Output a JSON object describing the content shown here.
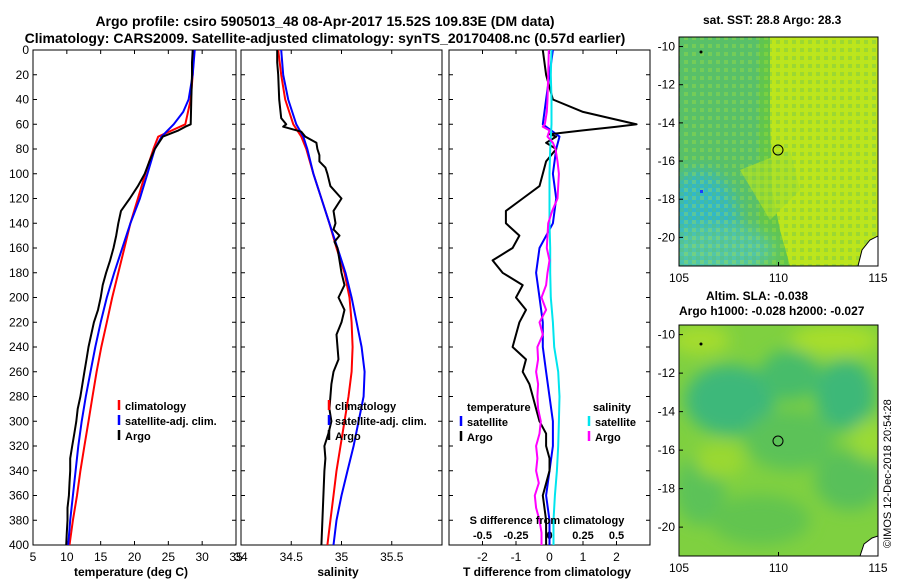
{
  "header": {
    "line1": "Argo profile: csiro 5905013_48 08-Apr-2017 15.52S 109.83E (DM data)",
    "line2": "Climatology: CARS2009. Satellite-adjusted climatology: synTS_20170408.nc (0.57d earlier)"
  },
  "colors": {
    "climatology": "#ff0000",
    "satellite": "#0000ff",
    "argo": "#000000",
    "salinity": "#00e5ee",
    "sal_argo": "#ff00ff"
  },
  "chart_data": [
    {
      "type": "line",
      "id": "temperature",
      "xlabel": "temperature (deg C)",
      "xlim": [
        5,
        35
      ],
      "ylim": [
        0,
        400
      ],
      "xticks": [
        5,
        10,
        15,
        20,
        25,
        30,
        35
      ],
      "yticks": [
        0,
        20,
        40,
        60,
        80,
        100,
        120,
        140,
        160,
        180,
        200,
        220,
        240,
        260,
        280,
        300,
        320,
        340,
        360,
        380,
        400
      ],
      "legend": [
        "climatology",
        "satellite-adj. clim.",
        "Argo"
      ],
      "series": [
        {
          "name": "climatology",
          "color": "#ff0000",
          "depth": [
            0,
            20,
            40,
            60,
            70,
            80,
            100,
            120,
            140,
            160,
            180,
            200,
            220,
            240,
            260,
            280,
            300,
            320,
            340,
            360,
            380,
            400
          ],
          "values": [
            28.8,
            28.6,
            28.3,
            27.5,
            23.5,
            22.8,
            21.6,
            20.5,
            19.4,
            18.5,
            17.6,
            16.7,
            15.9,
            15.1,
            14.4,
            13.8,
            13.2,
            12.6,
            12.0,
            11.5,
            10.9,
            10.4
          ]
        },
        {
          "name": "satellite-adj. clim.",
          "color": "#0000ff",
          "depth": [
            0,
            20,
            40,
            50,
            60,
            70,
            80,
            100,
            120,
            140,
            160,
            180,
            200,
            220,
            240,
            260,
            280,
            300,
            320,
            340,
            360,
            380,
            400
          ],
          "values": [
            28.9,
            28.6,
            28.0,
            27.2,
            25.8,
            24.0,
            23.0,
            21.9,
            20.8,
            19.4,
            18.2,
            17.0,
            15.9,
            15.0,
            14.2,
            13.5,
            12.8,
            12.2,
            11.7,
            11.3,
            10.9,
            10.5,
            10.2
          ]
        },
        {
          "name": "Argo",
          "color": "#000000",
          "depth": [
            0,
            10,
            20,
            40,
            60,
            62,
            65,
            70,
            80,
            90,
            100,
            110,
            120,
            130,
            140,
            150,
            160,
            170,
            180,
            190,
            200,
            210,
            220,
            230,
            240,
            250,
            260,
            270,
            280,
            290,
            300,
            310,
            320,
            330,
            340,
            350,
            360,
            370,
            380,
            390,
            400
          ],
          "values": [
            28.6,
            28.5,
            28.5,
            28.4,
            28.3,
            27.5,
            26.5,
            24.2,
            23.0,
            22.2,
            21.5,
            20.5,
            19.3,
            18.0,
            17.6,
            17.3,
            16.9,
            16.4,
            15.8,
            15.3,
            15.0,
            14.6,
            14.0,
            13.6,
            13.2,
            12.9,
            12.6,
            12.3,
            12.0,
            11.6,
            11.4,
            11.1,
            10.8,
            10.5,
            10.5,
            10.4,
            10.3,
            10.1,
            10.1,
            10.0,
            9.9
          ]
        }
      ]
    },
    {
      "type": "line",
      "id": "salinity",
      "xlabel": "salinity",
      "xlim": [
        34,
        36
      ],
      "xticks": [
        34,
        34.5,
        35,
        35.5
      ],
      "legend": [
        "climatology",
        "satellite-adj. clim.",
        "Argo"
      ],
      "series": [
        {
          "name": "climatology",
          "color": "#ff0000",
          "depth": [
            0,
            20,
            40,
            60,
            70,
            80,
            100,
            120,
            140,
            160,
            180,
            200,
            220,
            240,
            260,
            280,
            300,
            320,
            340,
            360,
            380,
            400
          ],
          "values": [
            34.37,
            34.4,
            34.44,
            34.52,
            34.6,
            34.65,
            34.72,
            34.8,
            34.88,
            34.95,
            35.03,
            35.08,
            35.1,
            35.11,
            35.1,
            35.07,
            35.03,
            34.99,
            34.95,
            34.92,
            34.89,
            34.86
          ]
        },
        {
          "name": "satellite-adj. clim.",
          "color": "#0000ff",
          "depth": [
            0,
            20,
            40,
            60,
            70,
            80,
            100,
            120,
            140,
            160,
            180,
            200,
            220,
            240,
            260,
            280,
            300,
            320,
            340,
            360,
            380,
            400
          ],
          "values": [
            34.4,
            34.42,
            34.47,
            34.55,
            34.62,
            34.66,
            34.72,
            34.8,
            34.88,
            34.96,
            35.04,
            35.1,
            35.15,
            35.2,
            35.23,
            35.22,
            35.17,
            35.12,
            35.06,
            35.0,
            34.95,
            34.92
          ]
        },
        {
          "name": "Argo",
          "color": "#000000",
          "depth": [
            0,
            10,
            20,
            40,
            55,
            60,
            62,
            66,
            70,
            75,
            80,
            85,
            90,
            95,
            100,
            110,
            120,
            130,
            140,
            145,
            150,
            155,
            160,
            170,
            180,
            190,
            200,
            210,
            220,
            230,
            240,
            250,
            260,
            270,
            280,
            290,
            300,
            310,
            320,
            330,
            340,
            360,
            380,
            400
          ],
          "values": [
            34.36,
            34.36,
            34.37,
            34.38,
            34.4,
            34.45,
            34.42,
            34.6,
            34.64,
            34.75,
            34.76,
            34.78,
            34.78,
            34.84,
            34.86,
            34.89,
            35.0,
            34.92,
            34.94,
            34.92,
            34.98,
            34.93,
            34.96,
            34.98,
            35.0,
            35.03,
            34.97,
            35.03,
            35.0,
            34.95,
            34.96,
            34.97,
            34.92,
            34.9,
            34.89,
            34.88,
            34.9,
            34.87,
            34.83,
            34.84,
            34.83,
            34.82,
            34.81,
            34.8
          ]
        }
      ]
    },
    {
      "type": "line",
      "id": "differences",
      "xlabel": "T difference from climatology",
      "xlim": [
        -3,
        3
      ],
      "xticks": [
        -2,
        -1,
        0,
        1,
        2
      ],
      "top_axis_label": "S difference from climatology",
      "top_ticks": [
        -0.5,
        -0.25,
        0,
        0.25,
        0.5
      ],
      "top_tick_labels": [
        "-0.5",
        "-0.25",
        "0",
        "0.25",
        "0.5"
      ],
      "legend_temperature_title": "temperature",
      "legend_salinity_title": "salinity",
      "legend_temperature": [
        "satellite",
        "Argo"
      ],
      "legend_salinity": [
        "satellite",
        "Argo"
      ],
      "series": [
        {
          "name": "T satellite",
          "color": "#0000ff",
          "depth": [
            0,
            20,
            40,
            60,
            70,
            80,
            100,
            120,
            140,
            160,
            180,
            200,
            220,
            240,
            260,
            280,
            300,
            320,
            340,
            360,
            380,
            400
          ],
          "values": [
            0.1,
            0.0,
            -0.1,
            -0.2,
            0.3,
            0.2,
            0.1,
            0.2,
            0.1,
            -0.3,
            -0.4,
            -0.3,
            -0.2,
            -0.2,
            -0.1,
            0.0,
            0.1,
            0.1,
            0.0,
            -0.1,
            0.0,
            0.0
          ]
        },
        {
          "name": "T Argo",
          "color": "#000000",
          "depth": [
            0,
            20,
            40,
            50,
            55,
            60,
            62,
            65,
            68,
            70,
            75,
            80,
            90,
            100,
            110,
            120,
            130,
            140,
            150,
            160,
            170,
            180,
            190,
            200,
            210,
            220,
            230,
            240,
            250,
            260,
            270,
            280,
            290,
            300,
            310,
            320,
            330,
            340,
            360,
            380,
            400
          ],
          "values": [
            -0.2,
            -0.1,
            0.1,
            1.0,
            1.8,
            2.6,
            2.0,
            1.0,
            0.0,
            0.2,
            -0.1,
            0.2,
            -0.1,
            -0.2,
            -0.3,
            -0.8,
            -1.3,
            -1.3,
            -0.9,
            -1.1,
            -1.7,
            -1.4,
            -0.8,
            -1.0,
            -0.7,
            -0.9,
            -1.0,
            -1.1,
            -0.7,
            -0.8,
            -0.6,
            -0.5,
            -0.4,
            -0.3,
            -0.1,
            -0.1,
            0.0,
            0.0,
            -0.2,
            -0.1,
            -0.1
          ]
        },
        {
          "name": "S satellite",
          "color": "#00e5ee",
          "depth": [
            0,
            20,
            40,
            60,
            80,
            100,
            120,
            140,
            160,
            180,
            200,
            220,
            240,
            260,
            280,
            300,
            320,
            340,
            360,
            380,
            400
          ],
          "values": [
            0.03,
            0.02,
            0.03,
            0.03,
            0.01,
            0.0,
            0.0,
            0.0,
            0.01,
            0.01,
            0.02,
            0.05,
            0.07,
            0.13,
            0.15,
            0.14,
            0.13,
            0.11,
            0.08,
            0.06,
            0.06
          ]
        },
        {
          "name": "S Argo",
          "color": "#ff00ff",
          "depth": [
            0,
            20,
            40,
            50,
            60,
            62,
            65,
            70,
            75,
            80,
            90,
            100,
            110,
            120,
            130,
            140,
            150,
            160,
            170,
            180,
            190,
            200,
            210,
            220,
            230,
            240,
            250,
            260,
            270,
            280,
            290,
            300,
            310,
            320,
            330,
            340,
            350,
            360,
            370,
            380,
            390,
            400
          ],
          "values": [
            -0.01,
            -0.02,
            -0.03,
            -0.04,
            -0.07,
            -0.1,
            0.0,
            -0.03,
            0.05,
            0.09,
            0.12,
            0.14,
            0.13,
            0.12,
            0.04,
            -0.02,
            -0.03,
            -0.04,
            0.0,
            -0.03,
            -0.05,
            -0.12,
            -0.05,
            -0.15,
            -0.1,
            -0.18,
            -0.17,
            -0.2,
            -0.17,
            -0.18,
            -0.17,
            -0.13,
            -0.15,
            -0.2,
            -0.18,
            -0.2,
            -0.16,
            -0.22,
            -0.2,
            -0.15,
            -0.12,
            -0.12
          ]
        }
      ]
    },
    {
      "type": "heatmap",
      "id": "sst-map",
      "title": "sat. SST: 28.8 Argo: 28.3",
      "xlim": [
        105,
        115
      ],
      "ylim": [
        -21.5,
        -9.5
      ],
      "xticks": [
        105,
        110,
        115
      ],
      "yticks": [
        -10,
        -12,
        -14,
        -16,
        -18,
        -20
      ],
      "marker": {
        "lon": 109.83,
        "lat": -15.52
      }
    },
    {
      "type": "heatmap",
      "id": "sla-map",
      "title_line1": "Altim. SLA: -0.038",
      "title_line2": "Argo h1000: -0.028 h2000: -0.027",
      "xlim": [
        105,
        115
      ],
      "ylim": [
        -21.5,
        -9.5
      ],
      "xticks": [
        105,
        110,
        115
      ],
      "yticks": [
        -10,
        -12,
        -14,
        -16,
        -18,
        -20
      ],
      "marker": {
        "lon": 109.83,
        "lat": -15.52
      }
    }
  ],
  "stamp": "©IMOS 12-Dec-2018 20:54:28"
}
